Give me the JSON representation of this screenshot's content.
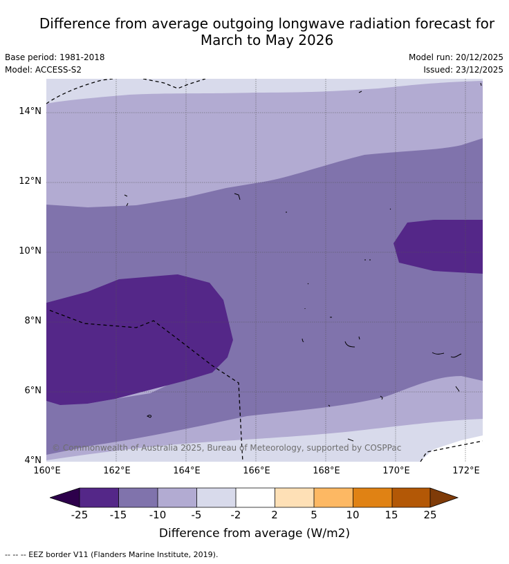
{
  "header": {
    "title_line1": "Difference from average outgoing longwave radiation forecast for",
    "title_line2": "March to May 2026",
    "base_period": "Base period: 1981-2018",
    "model": "Model: ACCESS-S2",
    "model_run": "Model run: 20/12/2025",
    "issued": "Issued: 23/12/2025"
  },
  "map": {
    "lat_labels": [
      "14°N",
      "12°N",
      "10°N",
      "8°N",
      "6°N",
      "4°N"
    ],
    "lon_labels": [
      "160°E",
      "162°E",
      "164°E",
      "166°E",
      "168°E",
      "170°E",
      "172°E"
    ],
    "copyright": "© Commonwealth of Australia 2025, Bureau of Meteorology, supported by COSPPac"
  },
  "colorbar": {
    "ticks": [
      "-25",
      "-15",
      "-10",
      "-5",
      "-2",
      "2",
      "5",
      "10",
      "15",
      "25"
    ],
    "colors": [
      "#2d004b",
      "#542788",
      "#8073ac",
      "#b2abd2",
      "#d8daeb",
      "#ffffff",
      "#fee0b6",
      "#fdb863",
      "#e08214",
      "#b35806",
      "#7f3b08"
    ],
    "title": "Difference from average (W/m2)"
  },
  "footnote": "--  --  -- EEZ border V11 (Flanders Marine Institute, 2019)."
}
